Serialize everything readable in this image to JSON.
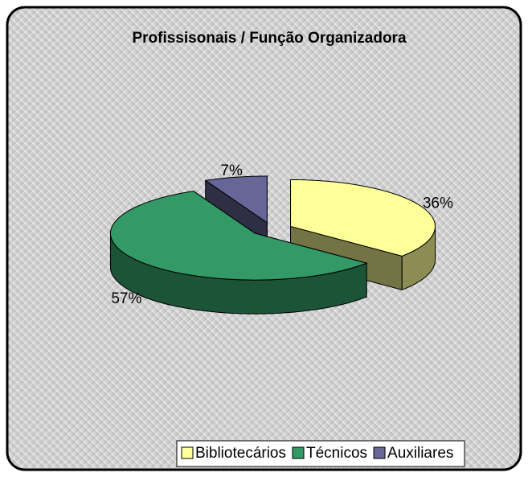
{
  "chart_data": {
    "type": "pie",
    "title": "Profissisonais / Função Organizadora",
    "categories": [
      "Bibliotecários",
      "Técnicos",
      "Auxiliares"
    ],
    "values": [
      36,
      57,
      7
    ],
    "value_labels": [
      "36%",
      "57%",
      "7%"
    ],
    "colors": [
      "#ffff99",
      "#339966",
      "#666699"
    ],
    "legend": "bottom"
  }
}
